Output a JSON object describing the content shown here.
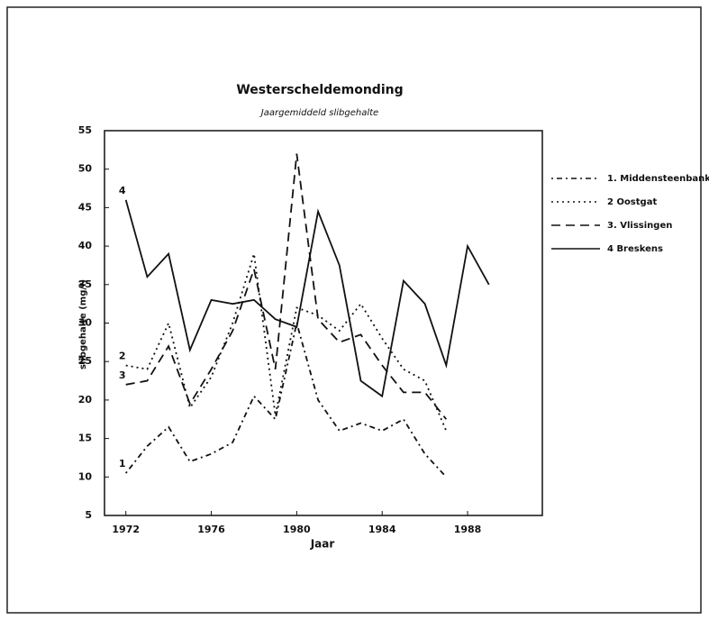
{
  "chart_data": {
    "type": "line",
    "title": "Westerscheldemonding",
    "subtitle": "Jaargemiddeld slibgehalte",
    "x_label": "Jaar",
    "y_label": "slibgehalte (mg/l)",
    "xlim": [
      1971,
      1991.5
    ],
    "xticks": [
      1972,
      1976,
      1980,
      1984,
      1988
    ],
    "ylim": [
      5,
      55
    ],
    "yticks": [
      5,
      10,
      15,
      20,
      25,
      30,
      35,
      40,
      45,
      50,
      55
    ],
    "legend": "right",
    "series": [
      {
        "name": "1. Middensteenbank",
        "line_label": "1",
        "color": "#111111",
        "dash": "2,4,6,4",
        "x": [
          1972,
          1973,
          1974,
          1975,
          1976,
          1977,
          1978,
          1979,
          1980,
          1981,
          1982,
          1983,
          1984,
          1985,
          1986,
          1987
        ],
        "values": [
          10.5,
          14,
          16.5,
          12,
          13,
          14.5,
          20.5,
          17.5,
          30,
          20,
          16,
          17,
          16,
          17.5,
          13,
          10
        ]
      },
      {
        "name": "2 Oostgat",
        "line_label": "2",
        "color": "#111111",
        "dash": "2,4",
        "x": [
          1972,
          1973,
          1974,
          1975,
          1976,
          1977,
          1978,
          1979,
          1980,
          1981,
          1982,
          1983,
          1984,
          1985,
          1986,
          1987
        ],
        "values": [
          24.5,
          24,
          30,
          19,
          23,
          30,
          39,
          18,
          32,
          31,
          29,
          32.5,
          28,
          24,
          22.5,
          16
        ]
      },
      {
        "name": "3. Vlissingen",
        "line_label": "3",
        "color": "#111111",
        "dash": "10,6",
        "x": [
          1972,
          1973,
          1974,
          1975,
          1976,
          1977,
          1978,
          1979,
          1980,
          1981,
          1982,
          1983,
          1984,
          1985,
          1986,
          1987
        ],
        "values": [
          22,
          22.5,
          27,
          19.5,
          24,
          29,
          37,
          24,
          52,
          30.5,
          27.5,
          28.5,
          24.5,
          21,
          21,
          17.5
        ]
      },
      {
        "name": "4 Breskens",
        "line_label": "4",
        "color": "#111111",
        "dash": "none",
        "x": [
          1972,
          1973,
          1974,
          1975,
          1976,
          1977,
          1978,
          1979,
          1980,
          1981,
          1982,
          1983,
          1984,
          1985,
          1986,
          1987,
          1988,
          1989
        ],
        "values": [
          46,
          36,
          39,
          26.5,
          33,
          32.5,
          33,
          30.5,
          29.5,
          44.5,
          37.5,
          22.5,
          20.5,
          35.5,
          32.5,
          24.5,
          40,
          35
        ]
      }
    ]
  }
}
